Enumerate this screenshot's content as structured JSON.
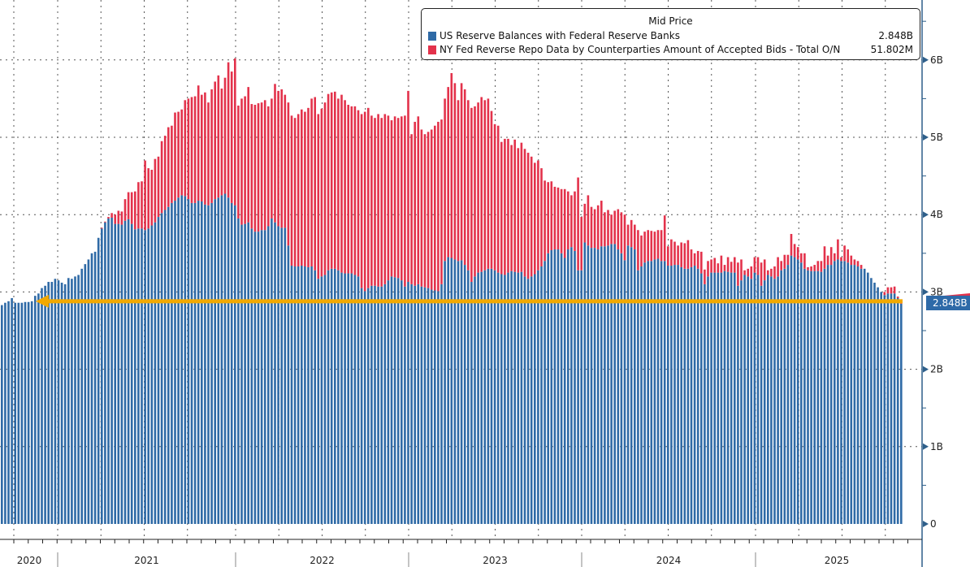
{
  "chart_data": {
    "type": "bar",
    "stacked": true,
    "frequency_label": "weekly",
    "legend": {
      "title": "Mid Price",
      "placement": "top-right",
      "entries": [
        {
          "name": "US Reserve Balances with Federal Reserve Banks",
          "value": "2.848B",
          "color": "#2f6aa6"
        },
        {
          "name": "NY Fed Reverse Repo Data by Counterparties Amount of Accepted Bids - Total O/N",
          "value": "51.802M",
          "color": "#e3324b"
        }
      ]
    },
    "x_tick_labels": [
      "2020",
      "2021",
      "2022",
      "2023",
      "2024",
      "2025"
    ],
    "y_tick_labels": [
      "0",
      "1B",
      "2B",
      "3B",
      "4B",
      "5B",
      "6B"
    ],
    "ylim": [
      0,
      6.9
    ],
    "grid": true,
    "last_value_label": "2.848B",
    "annotation": {
      "type": "arrow",
      "color": "#f2a900",
      "level": 2.848
    },
    "series": [
      {
        "name": "US Reserve Balances with Federal Reserve Banks",
        "values_by_year": {
          "2020": [
            2.83,
            2.86,
            2.88,
            2.92,
            2.86,
            2.86,
            2.86,
            2.87,
            2.87,
            2.88,
            2.95,
            2.98,
            3.05,
            3.08,
            3.13,
            3.13,
            3.17
          ],
          "2021": [
            3.15,
            3.12,
            3.1,
            3.18,
            3.17,
            3.2,
            3.22,
            3.3,
            3.36,
            3.42,
            3.5,
            3.52,
            3.7,
            3.82,
            3.9,
            3.95,
            3.96,
            3.88,
            3.88,
            3.87,
            3.92,
            3.94,
            3.88,
            3.81,
            3.82,
            3.82,
            3.8,
            3.82,
            3.86,
            3.9,
            3.97,
            4.02,
            4.06,
            4.1,
            4.15,
            4.18,
            4.22,
            4.25,
            4.24,
            4.2,
            4.15,
            4.15,
            4.18,
            4.17,
            4.13,
            4.12,
            4.15,
            4.2,
            4.22,
            4.25,
            4.27,
            4.22,
            4.15
          ],
          "2022": [
            4.12,
            3.95,
            3.87,
            3.88,
            3.9,
            3.82,
            3.78,
            3.78,
            3.8,
            3.8,
            3.85,
            3.95,
            3.9,
            3.85,
            3.83,
            3.83,
            3.6,
            3.34,
            3.33,
            3.33,
            3.34,
            3.33,
            3.32,
            3.33,
            3.28,
            3.17,
            3.2,
            3.22,
            3.28,
            3.3,
            3.3,
            3.28,
            3.25,
            3.24,
            3.24,
            3.24,
            3.22,
            3.2,
            3.05,
            3.01,
            3.05,
            3.08,
            3.08,
            3.07,
            3.07,
            3.1,
            3.15,
            3.2,
            3.19,
            3.18,
            3.15,
            3.07
          ],
          "2023": [
            3.13,
            3.1,
            3.08,
            3.1,
            3.07,
            3.06,
            3.05,
            3.03,
            3.02,
            3.01,
            3.1,
            3.4,
            3.45,
            3.44,
            3.42,
            3.4,
            3.41,
            3.35,
            3.28,
            3.13,
            3.2,
            3.25,
            3.26,
            3.28,
            3.3,
            3.3,
            3.28,
            3.25,
            3.23,
            3.22,
            3.25,
            3.27,
            3.26,
            3.25,
            3.26,
            3.2,
            3.17,
            3.2,
            3.23,
            3.28,
            3.33,
            3.4,
            3.5,
            3.54,
            3.55,
            3.55,
            3.5,
            3.44,
            3.55,
            3.58,
            3.53,
            3.28
          ],
          "2024": [
            3.28,
            3.64,
            3.6,
            3.57,
            3.57,
            3.55,
            3.59,
            3.59,
            3.6,
            3.62,
            3.62,
            3.55,
            3.5,
            3.41,
            3.6,
            3.58,
            3.55,
            3.28,
            3.33,
            3.38,
            3.4,
            3.4,
            3.42,
            3.43,
            3.4,
            3.4,
            3.34,
            3.34,
            3.35,
            3.35,
            3.32,
            3.3,
            3.3,
            3.32,
            3.34,
            3.3,
            3.24,
            3.1,
            3.2,
            3.25,
            3.25,
            3.25,
            3.25,
            3.27,
            3.26,
            3.25,
            3.25,
            3.08,
            3.15,
            3.22,
            3.2,
            3.17
          ],
          "2025": [
            3.25,
            3.22,
            3.08,
            3.15,
            3.22,
            3.2,
            3.17,
            3.2,
            3.28,
            3.3,
            3.35,
            3.47,
            3.45,
            3.42,
            3.38,
            3.3,
            3.28,
            3.27,
            3.27,
            3.27,
            3.26,
            3.3,
            3.35,
            3.35,
            3.4,
            3.42,
            3.4,
            3.4,
            3.38,
            3.35,
            3.35,
            3.33,
            3.3,
            3.3,
            3.25,
            3.18,
            3.12,
            3.06,
            3.0,
            2.96,
            2.98,
            2.98,
            2.98,
            2.92,
            2.848
          ]
        }
      },
      {
        "name": "NY Fed Reverse Repo Data by Counterparties Amount of Accepted Bids - Total O/N",
        "values_by_year": {
          "2020": [
            0,
            0,
            0,
            0,
            0,
            0,
            0,
            0,
            0,
            0,
            0,
            0,
            0,
            0,
            0,
            0,
            0
          ],
          "2021": [
            0,
            0,
            0,
            0,
            0,
            0,
            0,
            0,
            0,
            0,
            0,
            0,
            0,
            0.01,
            0.01,
            0.02,
            0.06,
            0.12,
            0.17,
            0.17,
            0.28,
            0.35,
            0.41,
            0.49,
            0.6,
            0.61,
            0.9,
            0.78,
            0.72,
            0.82,
            0.78,
            0.93,
            0.96,
            1.03,
            1.0,
            1.14,
            1.11,
            1.11,
            1.24,
            1.3,
            1.37,
            1.38,
            1.49,
            1.38,
            1.45,
            1.33,
            1.47,
            1.52,
            1.58,
            1.38,
            1.5,
            1.75,
            1.7
          ],
          "2022": [
            1.9,
            1.46,
            1.63,
            1.65,
            1.75,
            1.61,
            1.64,
            1.66,
            1.65,
            1.68,
            1.55,
            1.55,
            1.79,
            1.75,
            1.79,
            1.72,
            1.85,
            1.94,
            1.92,
            1.97,
            2.02,
            2.0,
            2.06,
            2.17,
            2.24,
            2.13,
            2.17,
            2.23,
            2.28,
            2.28,
            2.29,
            2.22,
            2.3,
            2.24,
            2.18,
            2.16,
            2.18,
            2.15,
            2.25,
            2.32,
            2.33,
            2.2,
            2.17,
            2.23,
            2.18,
            2.2,
            2.13,
            2.02,
            2.08,
            2.07,
            2.12,
            2.21
          ],
          "2023": [
            2.47,
            1.94,
            2.12,
            2.17,
            2.03,
            1.98,
            2.02,
            2.07,
            2.13,
            2.19,
            2.13,
            2.1,
            2.2,
            2.39,
            2.28,
            2.08,
            2.29,
            2.27,
            2.2,
            2.25,
            2.2,
            2.2,
            2.26,
            2.2,
            2.2,
            2.04,
            1.89,
            1.9,
            1.71,
            1.76,
            1.73,
            1.63,
            1.71,
            1.61,
            1.67,
            1.65,
            1.63,
            1.55,
            1.44,
            1.42,
            1.27,
            1.04,
            0.92,
            0.89,
            0.81,
            0.8,
            0.83,
            0.89,
            0.75,
            0.67,
            0.77,
            1.2
          ],
          "2024": [
            0.69,
            0.5,
            0.65,
            0.53,
            0.5,
            0.57,
            0.59,
            0.44,
            0.46,
            0.38,
            0.43,
            0.52,
            0.53,
            0.59,
            0.27,
            0.35,
            0.32,
            0.52,
            0.4,
            0.4,
            0.4,
            0.39,
            0.36,
            0.37,
            0.4,
            0.59,
            0.25,
            0.34,
            0.3,
            0.25,
            0.32,
            0.33,
            0.37,
            0.23,
            0.16,
            0.23,
            0.28,
            0.19,
            0.2,
            0.17,
            0.19,
            0.12,
            0.22,
            0.08,
            0.19,
            0.14,
            0.2,
            0.3,
            0.27,
            0.06,
            0.1,
            0.16
          ],
          "2025": [
            0.2,
            0.23,
            0.3,
            0.27,
            0.06,
            0.1,
            0.16,
            0.25,
            0.12,
            0.18,
            0.13,
            0.28,
            0.17,
            0.16,
            0.12,
            0.2,
            0.04,
            0.06,
            0.08,
            0.13,
            0.14,
            0.29,
            0.12,
            0.23,
            0.1,
            0.26,
            0.05,
            0.2,
            0.17,
            0.12,
            0.07,
            0.07,
            0.05,
            0,
            0,
            0,
            0,
            0,
            0,
            0.04,
            0.08,
            0.08,
            0.09,
            0.02,
            0.05
          ]
        }
      }
    ]
  }
}
